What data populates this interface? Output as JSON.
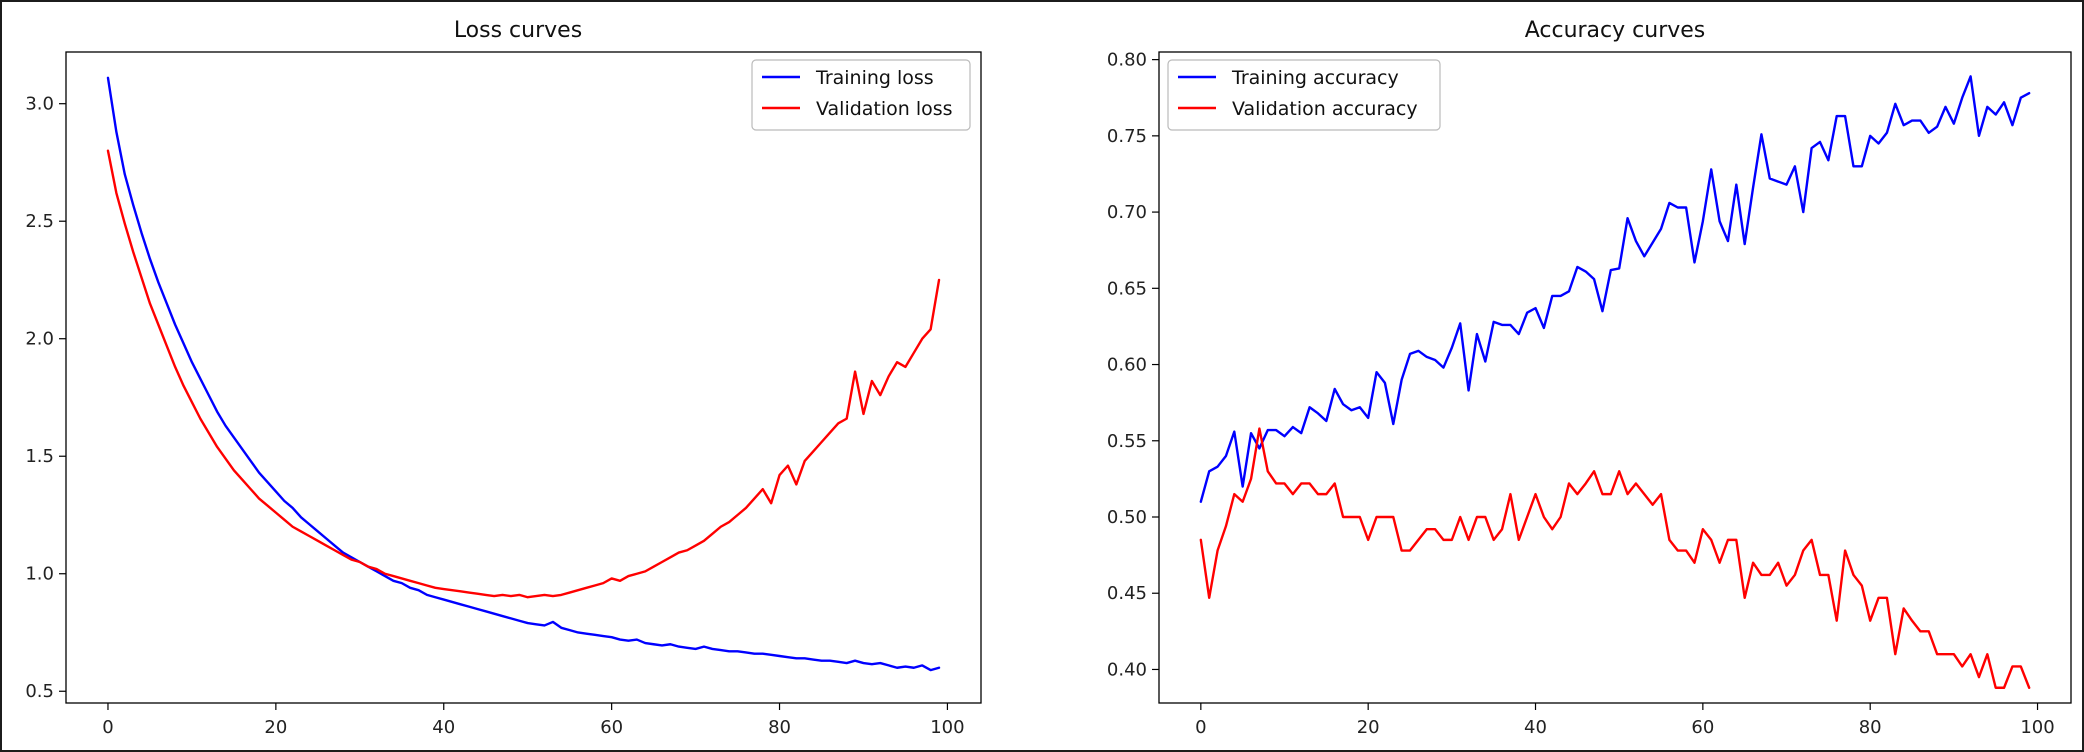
{
  "chart_data": [
    {
      "type": "line",
      "title": "Loss curves",
      "xlabel": "",
      "ylabel": "",
      "xlim": [
        -5,
        104
      ],
      "ylim": [
        0.45,
        3.22
      ],
      "xticks": [
        0,
        20,
        40,
        60,
        80,
        100
      ],
      "yticks": [
        0.5,
        1.0,
        1.5,
        2.0,
        2.5,
        3.0
      ],
      "xtick_labels": [
        "0",
        "20",
        "40",
        "60",
        "80",
        "100"
      ],
      "ytick_labels": [
        "0.5",
        "1.0",
        "1.5",
        "2.0",
        "2.5",
        "3.0"
      ],
      "legend_position": "top-right",
      "grid": false,
      "series": [
        {
          "name": "Training loss",
          "color": "#0000ff",
          "values": [
            3.11,
            2.88,
            2.7,
            2.57,
            2.45,
            2.34,
            2.24,
            2.15,
            2.06,
            1.98,
            1.9,
            1.83,
            1.76,
            1.69,
            1.63,
            1.58,
            1.53,
            1.48,
            1.43,
            1.39,
            1.35,
            1.31,
            1.28,
            1.24,
            1.21,
            1.18,
            1.15,
            1.12,
            1.09,
            1.07,
            1.05,
            1.03,
            1.01,
            0.99,
            0.97,
            0.96,
            0.94,
            0.93,
            0.91,
            0.9,
            0.89,
            0.88,
            0.87,
            0.86,
            0.85,
            0.84,
            0.83,
            0.82,
            0.81,
            0.8,
            0.79,
            0.785,
            0.78,
            0.795,
            0.77,
            0.76,
            0.75,
            0.745,
            0.74,
            0.735,
            0.73,
            0.72,
            0.715,
            0.72,
            0.705,
            0.7,
            0.695,
            0.7,
            0.69,
            0.685,
            0.68,
            0.69,
            0.68,
            0.675,
            0.67,
            0.67,
            0.665,
            0.66,
            0.66,
            0.655,
            0.65,
            0.645,
            0.64,
            0.64,
            0.635,
            0.63,
            0.63,
            0.625,
            0.62,
            0.63,
            0.62,
            0.615,
            0.62,
            0.61,
            0.6,
            0.605,
            0.6,
            0.61,
            0.59,
            0.6
          ]
        },
        {
          "name": "Validation loss",
          "color": "#ff0000",
          "values": [
            2.8,
            2.62,
            2.49,
            2.37,
            2.26,
            2.15,
            2.06,
            1.97,
            1.88,
            1.8,
            1.73,
            1.66,
            1.6,
            1.54,
            1.49,
            1.44,
            1.4,
            1.36,
            1.32,
            1.29,
            1.26,
            1.23,
            1.2,
            1.18,
            1.16,
            1.14,
            1.12,
            1.1,
            1.08,
            1.06,
            1.05,
            1.03,
            1.02,
            1.0,
            0.99,
            0.98,
            0.97,
            0.96,
            0.95,
            0.94,
            0.935,
            0.93,
            0.925,
            0.92,
            0.915,
            0.91,
            0.905,
            0.91,
            0.905,
            0.91,
            0.9,
            0.905,
            0.91,
            0.905,
            0.91,
            0.92,
            0.93,
            0.94,
            0.95,
            0.96,
            0.98,
            0.97,
            0.99,
            1.0,
            1.01,
            1.03,
            1.05,
            1.07,
            1.09,
            1.1,
            1.12,
            1.14,
            1.17,
            1.2,
            1.22,
            1.25,
            1.28,
            1.32,
            1.36,
            1.3,
            1.42,
            1.46,
            1.38,
            1.48,
            1.52,
            1.56,
            1.6,
            1.64,
            1.66,
            1.86,
            1.68,
            1.82,
            1.76,
            1.84,
            1.9,
            1.88,
            1.94,
            2.0,
            2.04,
            2.25
          ]
        }
      ]
    },
    {
      "type": "line",
      "title": "Accuracy curves",
      "xlabel": "",
      "ylabel": "",
      "xlim": [
        -5,
        104
      ],
      "ylim": [
        0.378,
        0.805
      ],
      "xticks": [
        0,
        20,
        40,
        60,
        80,
        100
      ],
      "yticks": [
        0.4,
        0.45,
        0.5,
        0.55,
        0.6,
        0.65,
        0.7,
        0.75,
        0.8
      ],
      "xtick_labels": [
        "0",
        "20",
        "40",
        "60",
        "80",
        "100"
      ],
      "ytick_labels": [
        "0.40",
        "0.45",
        "0.50",
        "0.55",
        "0.60",
        "0.65",
        "0.70",
        "0.75",
        "0.80"
      ],
      "legend_position": "top-left",
      "grid": false,
      "series": [
        {
          "name": "Training accuracy",
          "color": "#0000ff",
          "values": [
            0.51,
            0.53,
            0.533,
            0.54,
            0.556,
            0.52,
            0.555,
            0.545,
            0.557,
            0.557,
            0.553,
            0.559,
            0.555,
            0.572,
            0.568,
            0.563,
            0.584,
            0.574,
            0.57,
            0.572,
            0.565,
            0.595,
            0.588,
            0.561,
            0.59,
            0.607,
            0.609,
            0.605,
            0.603,
            0.598,
            0.611,
            0.627,
            0.583,
            0.62,
            0.602,
            0.628,
            0.626,
            0.626,
            0.62,
            0.634,
            0.637,
            0.624,
            0.645,
            0.645,
            0.648,
            0.664,
            0.661,
            0.656,
            0.635,
            0.662,
            0.663,
            0.696,
            0.681,
            0.671,
            0.68,
            0.689,
            0.706,
            0.703,
            0.703,
            0.667,
            0.694,
            0.728,
            0.694,
            0.681,
            0.718,
            0.679,
            0.716,
            0.751,
            0.722,
            0.72,
            0.718,
            0.73,
            0.7,
            0.742,
            0.746,
            0.734,
            0.763,
            0.763,
            0.73,
            0.73,
            0.75,
            0.745,
            0.752,
            0.771,
            0.757,
            0.76,
            0.76,
            0.752,
            0.756,
            0.769,
            0.758,
            0.775,
            0.789,
            0.75,
            0.769,
            0.764,
            0.772,
            0.757,
            0.775,
            0.778
          ]
        },
        {
          "name": "Validation accuracy",
          "color": "#ff0000",
          "values": [
            0.485,
            0.447,
            0.478,
            0.494,
            0.515,
            0.51,
            0.525,
            0.558,
            0.53,
            0.522,
            0.522,
            0.515,
            0.522,
            0.522,
            0.515,
            0.515,
            0.522,
            0.5,
            0.5,
            0.5,
            0.485,
            0.5,
            0.5,
            0.5,
            0.478,
            0.478,
            0.485,
            0.492,
            0.492,
            0.485,
            0.485,
            0.5,
            0.485,
            0.5,
            0.5,
            0.485,
            0.492,
            0.515,
            0.485,
            0.5,
            0.515,
            0.5,
            0.492,
            0.5,
            0.522,
            0.515,
            0.522,
            0.53,
            0.515,
            0.515,
            0.53,
            0.515,
            0.522,
            0.515,
            0.508,
            0.515,
            0.485,
            0.478,
            0.478,
            0.47,
            0.492,
            0.485,
            0.47,
            0.485,
            0.485,
            0.447,
            0.47,
            0.462,
            0.462,
            0.47,
            0.455,
            0.462,
            0.478,
            0.485,
            0.462,
            0.462,
            0.432,
            0.478,
            0.462,
            0.455,
            0.432,
            0.447,
            0.447,
            0.41,
            0.44,
            0.432,
            0.425,
            0.425,
            0.41,
            0.41,
            0.41,
            0.402,
            0.41,
            0.395,
            0.41,
            0.388,
            0.388,
            0.402,
            0.402,
            0.388
          ]
        }
      ]
    }
  ]
}
